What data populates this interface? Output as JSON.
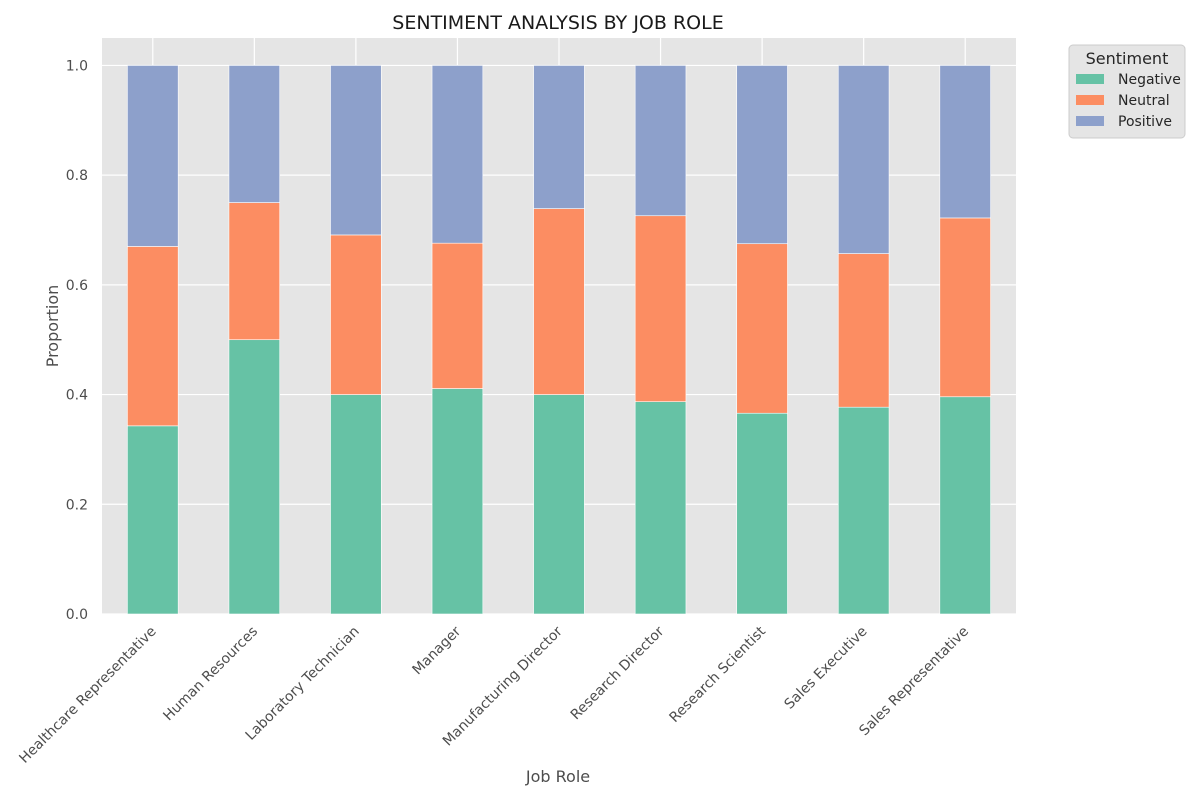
{
  "chart_data": {
    "type": "bar",
    "stacked": true,
    "title": "SENTIMENT ANALYSIS BY JOB ROLE",
    "xlabel": "Job Role",
    "ylabel": "Proportion",
    "ylim": [
      0,
      1.05
    ],
    "yticks": [
      "0.0",
      "0.2",
      "0.4",
      "0.6",
      "0.8",
      "1.0"
    ],
    "grid": true,
    "legend_title": "Sentiment",
    "legend_position": "outside top-right",
    "categories": [
      "Healthcare Representative",
      "Human Resources",
      "Laboratory Technician",
      "Manager",
      "Manufacturing Director",
      "Research Director",
      "Research Scientist",
      "Sales Executive",
      "Sales Representative"
    ],
    "series": [
      {
        "name": "Negative",
        "color": "#66c2a5",
        "values": [
          0.343,
          0.5,
          0.4,
          0.411,
          0.4,
          0.387,
          0.366,
          0.377,
          0.396
        ]
      },
      {
        "name": "Neutral",
        "color": "#fc8d62",
        "values": [
          0.327,
          0.25,
          0.291,
          0.265,
          0.339,
          0.339,
          0.309,
          0.28,
          0.326
        ]
      },
      {
        "name": "Positive",
        "color": "#8da0cb",
        "values": [
          0.33,
          0.25,
          0.309,
          0.324,
          0.261,
          0.274,
          0.325,
          0.343,
          0.278
        ]
      }
    ]
  }
}
